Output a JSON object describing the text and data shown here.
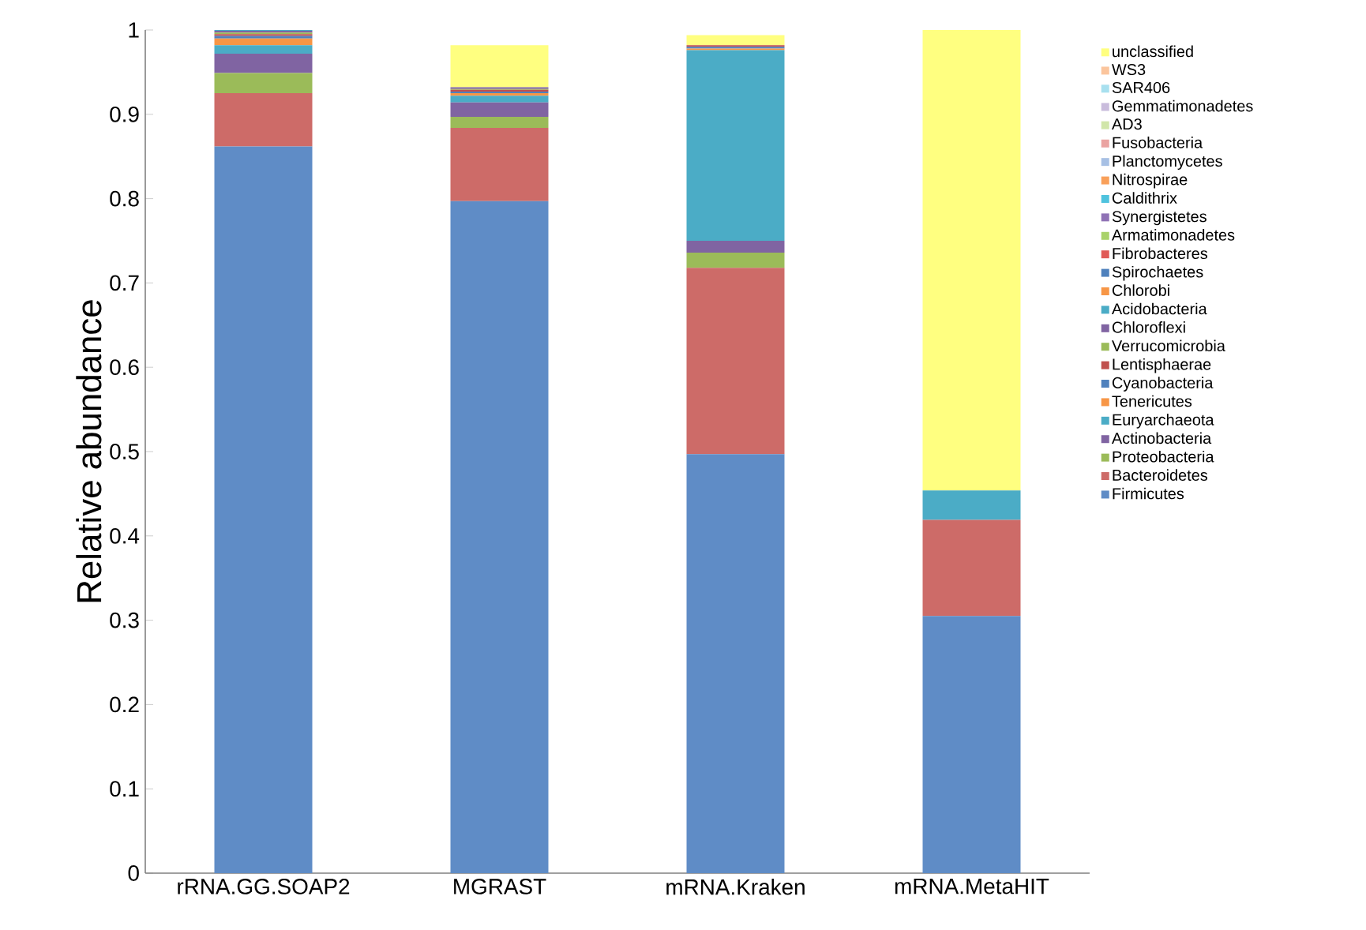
{
  "chart_data": {
    "type": "bar",
    "stacked": true,
    "ylabel": "Relative abundance",
    "categories": [
      "rRNA.GG.SOAP2",
      "MGRAST",
      "mRNA.Kraken",
      "mRNA.MetaHIT"
    ],
    "ylim": [
      0,
      1
    ],
    "yticks": [
      0,
      0.1,
      0.2,
      0.3,
      0.4,
      0.5,
      0.6,
      0.7,
      0.8,
      0.9,
      1
    ],
    "legend": "right",
    "grid": false,
    "series": [
      {
        "name": "Firmicutes",
        "color": "#5f8cc6",
        "values": [
          0.862,
          0.797,
          0.497,
          0.305
        ]
      },
      {
        "name": "Bacteroidetes",
        "color": "#cd6b68",
        "values": [
          0.063,
          0.087,
          0.221,
          0.114
        ]
      },
      {
        "name": "Proteobacteria",
        "color": "#9bbb59",
        "values": [
          0.024,
          0.013,
          0.018,
          0
        ]
      },
      {
        "name": "Actinobacteria",
        "color": "#8064a2",
        "values": [
          0.023,
          0.017,
          0.014,
          0
        ]
      },
      {
        "name": "Euryarchaeota",
        "color": "#4bacc6",
        "values": [
          0.01,
          0.008,
          0.226,
          0.035
        ]
      },
      {
        "name": "Tenericutes",
        "color": "#f79646",
        "values": [
          0.008,
          0.003,
          0.002,
          0
        ]
      },
      {
        "name": "Cyanobacteria",
        "color": "#4f81bd",
        "values": [
          0.003,
          0.002,
          0.002,
          0
        ]
      },
      {
        "name": "Lentisphaerae",
        "color": "#c0504d",
        "values": [
          0.002,
          0.002,
          0.002,
          0
        ]
      },
      {
        "name": "Verrucomicrobia",
        "color": "#9bbb59",
        "values": [
          0.002,
          0.001,
          0,
          0
        ]
      },
      {
        "name": "Chloroflexi",
        "color": "#8064a2",
        "values": [
          0.002,
          0.002,
          0,
          0
        ]
      },
      {
        "name": "Acidobacteria",
        "color": "#4bacc6",
        "values": [
          0.001,
          0,
          0,
          0
        ]
      },
      {
        "name": "Chlorobi",
        "color": "#f79646",
        "values": [
          0,
          0,
          0,
          0
        ]
      },
      {
        "name": "Spirochaetes",
        "color": "#4f81bd",
        "values": [
          0,
          0,
          0,
          0
        ]
      },
      {
        "name": "Fibrobacteres",
        "color": "#e05a57",
        "values": [
          0,
          0,
          0,
          0
        ]
      },
      {
        "name": "Armatimonadetes",
        "color": "#a9d26a",
        "values": [
          0,
          0,
          0,
          0
        ]
      },
      {
        "name": "Synergistetes",
        "color": "#8f72b5",
        "values": [
          0,
          0,
          0,
          0
        ]
      },
      {
        "name": "Caldithrix",
        "color": "#4fc3de",
        "values": [
          0,
          0,
          0,
          0
        ]
      },
      {
        "name": "Nitrospirae",
        "color": "#f9a05a",
        "values": [
          0,
          0,
          0,
          0
        ]
      },
      {
        "name": "Planctomycetes",
        "color": "#a7c0e4",
        "values": [
          0,
          0,
          0,
          0
        ]
      },
      {
        "name": "Fusobacteria",
        "color": "#eaa3a1",
        "values": [
          0,
          0,
          0,
          0
        ]
      },
      {
        "name": "AD3",
        "color": "#d1e6a9",
        "values": [
          0,
          0,
          0,
          0
        ]
      },
      {
        "name": "Gemmatimonadetes",
        "color": "#c9bcdc",
        "values": [
          0,
          0,
          0,
          0
        ]
      },
      {
        "name": "SAR406",
        "color": "#a8e0ef",
        "values": [
          0,
          0,
          0,
          0
        ]
      },
      {
        "name": "WS3",
        "color": "#fbc59d",
        "values": [
          0,
          0,
          0,
          0
        ]
      },
      {
        "name": "unclassified",
        "color": "#ffff80",
        "values": [
          0,
          0.05,
          0.012,
          0.546
        ]
      }
    ]
  }
}
